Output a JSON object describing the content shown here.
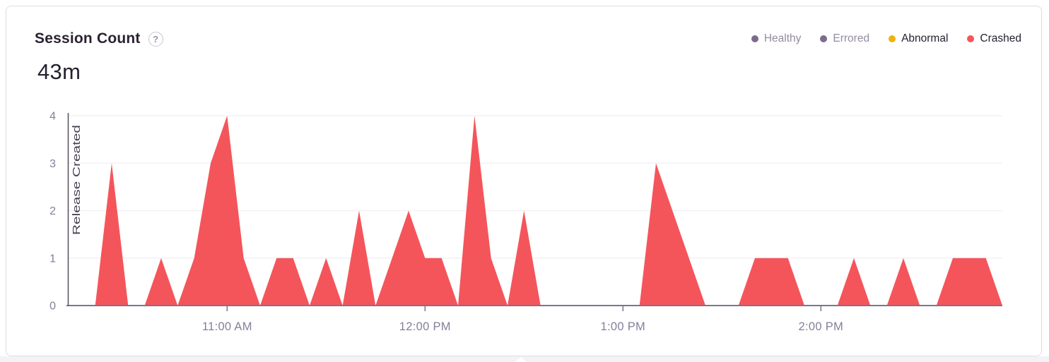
{
  "header": {
    "title": "Session Count",
    "help_glyph": "?",
    "value": "43m"
  },
  "legend": {
    "items": [
      {
        "label": "Healthy",
        "color": "#7c6b8a",
        "selected": false
      },
      {
        "label": "Errored",
        "color": "#7c6b8a",
        "selected": false
      },
      {
        "label": "Abnormal",
        "color": "#efb10e",
        "selected": true
      },
      {
        "label": "Crashed",
        "color": "#f4555b",
        "selected": true
      }
    ]
  },
  "chart_data": {
    "type": "area",
    "title": "Session Count",
    "total_label": "43m",
    "bucket_minutes": 5,
    "x_unit": "minutes_after_midnight",
    "x_domain_minutes": [
      611.5,
      895
    ],
    "x_ticks": [
      {
        "minutes": 660,
        "label": "11:00 AM"
      },
      {
        "minutes": 720,
        "label": "12:00 PM"
      },
      {
        "minutes": 780,
        "label": "1:00 PM"
      },
      {
        "minutes": 840,
        "label": "2:00 PM"
      }
    ],
    "y_ticks": [
      0,
      1,
      2,
      3,
      4
    ],
    "ylim": [
      0,
      4
    ],
    "grid": true,
    "legend_position": "top-right",
    "annotation": {
      "label": "Release Created",
      "minutes": 611.5
    },
    "series": [
      {
        "name": "Crashed",
        "color": "#f4555b",
        "points": [
          [
            615,
            0
          ],
          [
            620,
            0
          ],
          [
            625,
            3
          ],
          [
            630,
            0
          ],
          [
            635,
            0
          ],
          [
            640,
            1
          ],
          [
            645,
            0
          ],
          [
            650,
            1
          ],
          [
            655,
            3
          ],
          [
            660,
            4
          ],
          [
            665,
            1
          ],
          [
            670,
            0
          ],
          [
            675,
            1
          ],
          [
            680,
            1
          ],
          [
            685,
            0
          ],
          [
            690,
            1
          ],
          [
            695,
            0
          ],
          [
            700,
            2
          ],
          [
            705,
            0
          ],
          [
            710,
            1
          ],
          [
            715,
            2
          ],
          [
            720,
            1
          ],
          [
            725,
            1
          ],
          [
            730,
            0
          ],
          [
            735,
            4
          ],
          [
            740,
            1
          ],
          [
            745,
            0
          ],
          [
            750,
            2
          ],
          [
            755,
            0
          ],
          [
            760,
            0
          ],
          [
            765,
            0
          ],
          [
            770,
            0
          ],
          [
            775,
            0
          ],
          [
            780,
            0
          ],
          [
            785,
            0
          ],
          [
            790,
            3
          ],
          [
            795,
            2
          ],
          [
            800,
            1
          ],
          [
            805,
            0
          ],
          [
            810,
            0
          ],
          [
            815,
            0
          ],
          [
            820,
            1
          ],
          [
            825,
            1
          ],
          [
            830,
            1
          ],
          [
            835,
            0
          ],
          [
            840,
            0
          ],
          [
            845,
            0
          ],
          [
            850,
            1
          ],
          [
            855,
            0
          ],
          [
            860,
            0
          ],
          [
            865,
            1
          ],
          [
            870,
            0
          ],
          [
            875,
            0
          ],
          [
            880,
            1
          ],
          [
            885,
            1
          ],
          [
            890,
            1
          ],
          [
            895,
            0
          ]
        ]
      }
    ]
  }
}
